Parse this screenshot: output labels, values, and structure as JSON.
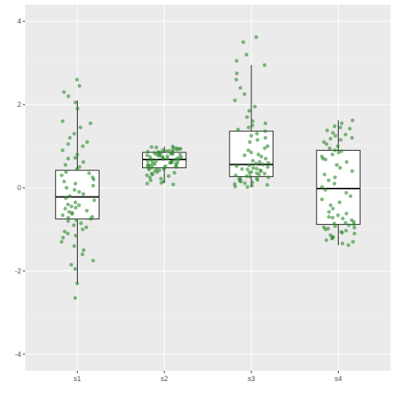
{
  "chart_data": {
    "type": "boxplot",
    "categories": [
      "s1",
      "s2",
      "s3",
      "s4"
    ],
    "title": "",
    "xlabel": "",
    "ylabel": "",
    "ylim": [
      -4.4,
      4.4
    ],
    "yticks": [
      -4,
      -2,
      0,
      2,
      4
    ],
    "grid": true,
    "legend": "none",
    "colors": {
      "panel_bg": "#ebebeb",
      "grid_major": "#ffffff",
      "grid_minor": "#f5f5f5",
      "box_fill": "#ffffff",
      "box_line": "#1a1a1a",
      "point": "#2e8b2e"
    },
    "boxes": [
      {
        "name": "s1",
        "whisker_low": -2.3,
        "q1": -0.75,
        "median": -0.22,
        "q3": 0.42,
        "whisker_high": 2.1
      },
      {
        "name": "s2",
        "whisker_low": 0.12,
        "q1": 0.48,
        "median": 0.68,
        "q3": 0.85,
        "whisker_high": 0.99
      },
      {
        "name": "s3",
        "whisker_low": 0.02,
        "q1": 0.27,
        "median": 0.56,
        "q3": 1.36,
        "whisker_high": 2.95
      },
      {
        "name": "s4",
        "whisker_low": -1.38,
        "q1": -0.88,
        "median": -0.02,
        "q3": 0.9,
        "whisker_high": 1.62
      }
    ],
    "points": [
      [
        2.6,
        2.45,
        2.3,
        2.2,
        2.05,
        1.9,
        1.6,
        1.55,
        1.45,
        1.3,
        1.2,
        1.1,
        1.0,
        0.9,
        0.8,
        0.7,
        0.62,
        0.55,
        0.5,
        0.45,
        0.38,
        0.3,
        0.25,
        0.2,
        0.15,
        0.1,
        0.05,
        0.0,
        -0.05,
        -0.1,
        -0.15,
        -0.2,
        -0.25,
        -0.3,
        -0.35,
        -0.4,
        -0.42,
        -0.45,
        -0.5,
        -0.55,
        -0.6,
        -0.63,
        -0.66,
        -0.7,
        -0.72,
        -0.75,
        -0.78,
        -0.8,
        -0.85,
        -0.9,
        -0.95,
        -1.0,
        -1.05,
        -1.1,
        -1.15,
        -1.2,
        -1.3,
        -1.4,
        -1.5,
        -1.6,
        -1.75,
        -1.85,
        -1.95,
        -2.3,
        -2.65,
        0.35,
        -0.48,
        0.72,
        -0.58,
        1.05
      ],
      [
        0.99,
        0.98,
        0.97,
        0.96,
        0.95,
        0.94,
        0.93,
        0.92,
        0.9,
        0.89,
        0.88,
        0.87,
        0.86,
        0.85,
        0.84,
        0.83,
        0.82,
        0.81,
        0.8,
        0.79,
        0.78,
        0.77,
        0.76,
        0.75,
        0.74,
        0.73,
        0.72,
        0.71,
        0.7,
        0.69,
        0.68,
        0.67,
        0.66,
        0.65,
        0.64,
        0.63,
        0.62,
        0.61,
        0.6,
        0.59,
        0.58,
        0.57,
        0.56,
        0.55,
        0.54,
        0.53,
        0.52,
        0.51,
        0.5,
        0.49,
        0.48,
        0.47,
        0.46,
        0.45,
        0.44,
        0.42,
        0.4,
        0.38,
        0.36,
        0.34,
        0.32,
        0.3,
        0.28,
        0.25,
        0.22,
        0.18,
        0.15,
        0.12,
        0.1,
        0.08,
        0.9,
        0.85,
        0.78,
        0.7,
        0.62
      ],
      [
        3.62,
        3.5,
        3.2,
        3.05,
        2.95,
        2.75,
        2.6,
        2.4,
        2.25,
        2.1,
        1.95,
        1.85,
        1.7,
        1.6,
        1.55,
        1.5,
        1.45,
        1.4,
        1.36,
        1.3,
        1.25,
        1.2,
        1.15,
        1.1,
        1.0,
        0.95,
        0.9,
        0.85,
        0.8,
        0.75,
        0.7,
        0.65,
        0.6,
        0.58,
        0.56,
        0.54,
        0.52,
        0.5,
        0.48,
        0.46,
        0.44,
        0.42,
        0.4,
        0.38,
        0.36,
        0.34,
        0.32,
        0.3,
        0.28,
        0.27,
        0.25,
        0.23,
        0.21,
        0.19,
        0.17,
        0.15,
        0.13,
        0.11,
        0.09,
        0.07,
        0.05,
        0.03,
        0.02,
        0.22,
        0.35,
        0.45,
        0.62,
        0.78
      ],
      [
        1.62,
        1.55,
        1.48,
        1.42,
        1.38,
        1.32,
        1.25,
        1.2,
        1.15,
        1.1,
        1.05,
        1.0,
        0.95,
        0.9,
        0.85,
        0.8,
        0.75,
        0.7,
        0.62,
        0.55,
        0.48,
        0.4,
        0.32,
        0.25,
        0.18,
        0.1,
        0.02,
        -0.05,
        -0.12,
        -0.2,
        -0.28,
        -0.35,
        -0.42,
        -0.5,
        -0.58,
        -0.62,
        -0.66,
        -0.7,
        -0.74,
        -0.78,
        -0.82,
        -0.86,
        -0.88,
        -0.9,
        -0.92,
        -0.95,
        -0.98,
        -1.0,
        -1.03,
        -1.06,
        -1.1,
        -1.14,
        -1.18,
        -1.22,
        -1.26,
        -1.3,
        -1.34,
        -1.38,
        1.28,
        1.18,
        0.88,
        0.68,
        -0.84,
        -0.96,
        -1.08,
        -1.2,
        -0.72,
        1.45
      ]
    ]
  }
}
